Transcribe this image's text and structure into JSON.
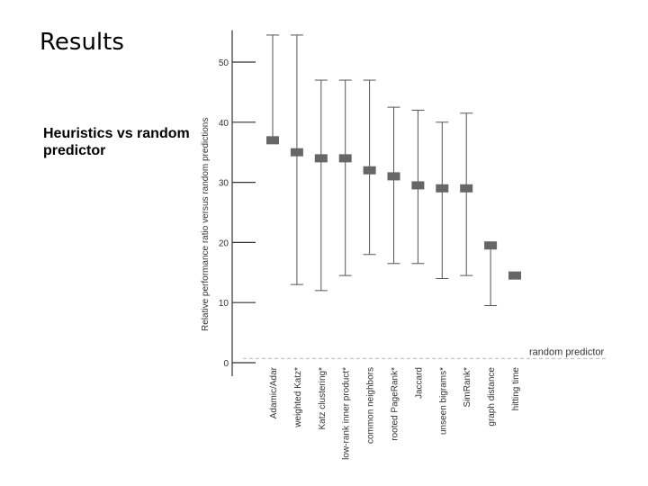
{
  "slide": {
    "title": "Results",
    "subtitle": "Heuristics vs random predictor"
  },
  "chart_data": {
    "type": "box",
    "title": "",
    "xlabel": "",
    "ylabel": "Relative performance ratio versus random predictions",
    "ylim": [
      0,
      55
    ],
    "yticks": [
      0,
      10,
      20,
      30,
      40,
      50
    ],
    "grid": false,
    "reference_line": {
      "value": 1,
      "label": "random predictor"
    },
    "categories": [
      "Adamic/Adar",
      "weighted Katz*",
      "Katz clustering*",
      "low-rank inner product*",
      "common neighbors",
      "rooted PageRank*",
      "Jaccard",
      "unseen bigrams*",
      "SimRank*",
      "graph distance",
      "hitting time"
    ],
    "series": [
      {
        "name": "performance ratio",
        "values": [
          37,
          35,
          34,
          34,
          32,
          31,
          29.5,
          29,
          29,
          19.5,
          14.5
        ],
        "max": [
          54.5,
          54.5,
          47,
          47,
          47,
          42.5,
          42,
          40,
          41.5,
          null,
          null
        ],
        "min": [
          null,
          13,
          12,
          14.5,
          18,
          16.5,
          16.5,
          14,
          14.5,
          9.5,
          null
        ]
      }
    ],
    "colors": {
      "marker": "#666666",
      "whisker": "#555555",
      "axis": "#333333",
      "reference": "#bbbbbb"
    }
  }
}
